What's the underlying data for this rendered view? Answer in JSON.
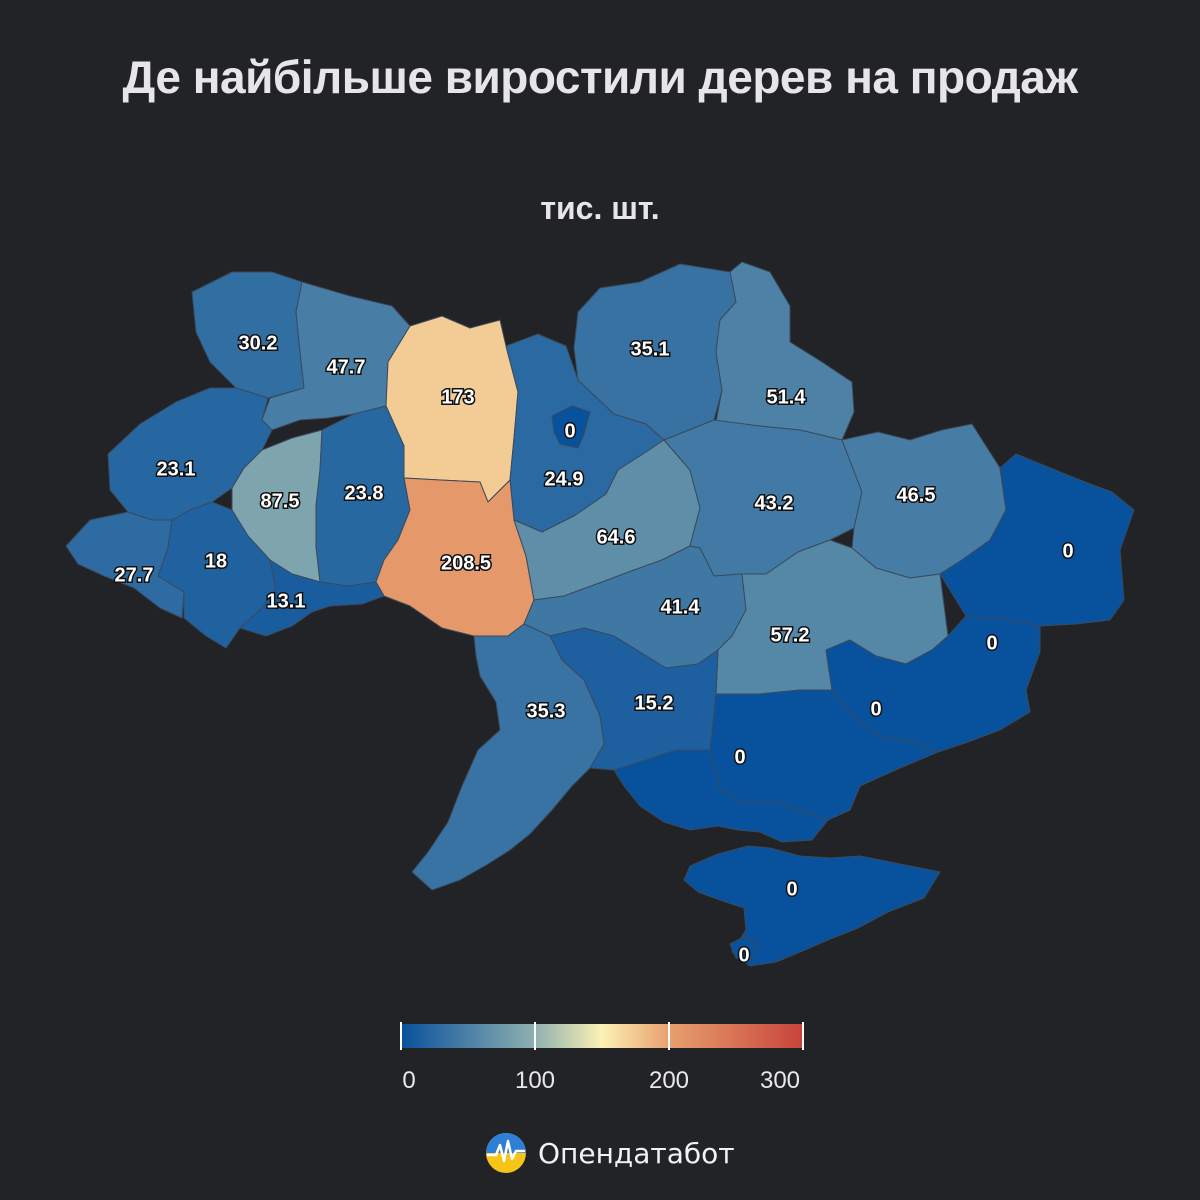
{
  "title": "Де найбільше виростили дерев на продаж",
  "subtitle": "тис. шт.",
  "chart_data": {
    "type": "choropleth",
    "regions": [
      {
        "id": "volyn",
        "value": 30.2
      },
      {
        "id": "rivne",
        "value": 47.7
      },
      {
        "id": "zhytomyr",
        "value": 173
      },
      {
        "id": "kyiv-city",
        "value": 0
      },
      {
        "id": "kyiv-oblast",
        "value": 24.9
      },
      {
        "id": "chernihiv",
        "value": 35.1
      },
      {
        "id": "sumy",
        "value": 51.4
      },
      {
        "id": "lviv",
        "value": 23.1
      },
      {
        "id": "ternopil",
        "value": 87.5
      },
      {
        "id": "khmelnytskyi",
        "value": 23.8
      },
      {
        "id": "vinnytsia",
        "value": 208.5
      },
      {
        "id": "cherkasy",
        "value": 64.6
      },
      {
        "id": "poltava",
        "value": 43.2
      },
      {
        "id": "kharkiv",
        "value": 46.5
      },
      {
        "id": "luhansk",
        "value": 0
      },
      {
        "id": "zakarpattia",
        "value": 27.7
      },
      {
        "id": "ivano-frankivsk",
        "value": 18
      },
      {
        "id": "chernivtsi",
        "value": 13.1
      },
      {
        "id": "kirovohrad",
        "value": 41.4
      },
      {
        "id": "dnipropetrovsk",
        "value": 57.2
      },
      {
        "id": "donetsk",
        "value": 0
      },
      {
        "id": "zaporizhzhia",
        "value": 0
      },
      {
        "id": "odesa",
        "value": 35.3
      },
      {
        "id": "mykolaiv",
        "value": 15.2
      },
      {
        "id": "kherson",
        "value": 0
      },
      {
        "id": "crimea",
        "value": 0
      },
      {
        "id": "sevastopol",
        "value": 0
      }
    ],
    "colorscale": {
      "min": 0,
      "max": 300,
      "stops": [
        "#08519c",
        "#8fb0b0",
        "#fbf1b4",
        "#e8a06e",
        "#c8433a"
      ],
      "ticks": [
        0,
        100,
        200,
        300
      ]
    }
  },
  "brand": {
    "name": "Опендатабот",
    "icon": "opendatabot-logo-icon"
  }
}
